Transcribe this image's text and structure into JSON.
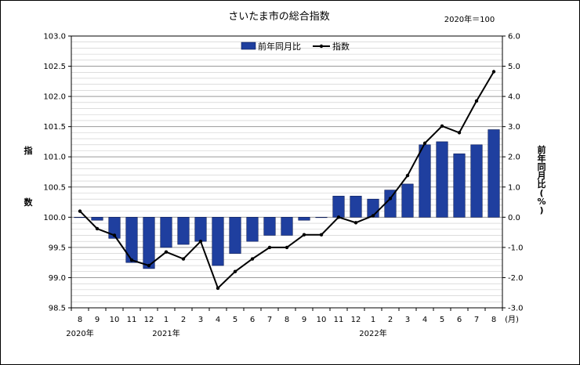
{
  "chart_data": {
    "type": "bar+line",
    "title": "さいたま市の総合指数",
    "base_note": "2020年＝100",
    "categories": [
      "8",
      "9",
      "10",
      "11",
      "12",
      "1",
      "2",
      "3",
      "4",
      "5",
      "6",
      "7",
      "8",
      "9",
      "10",
      "11",
      "12",
      "1",
      "2",
      "3",
      "4",
      "5",
      "6",
      "7",
      "8"
    ],
    "x_unit": "(月)",
    "year_labels": [
      {
        "text": "2020年",
        "index": 0
      },
      {
        "text": "2021年",
        "index": 5
      },
      {
        "text": "2022年",
        "index": 17
      }
    ],
    "left_axis": {
      "label_chars": [
        "指",
        "数"
      ],
      "min": 98.5,
      "max": 103.0,
      "major": 0.5,
      "ticks": [
        "98.5",
        "99.0",
        "99.5",
        "100.0",
        "100.5",
        "101.0",
        "101.5",
        "102.0",
        "102.5",
        "103.0"
      ]
    },
    "right_axis": {
      "label_chars": [
        "前",
        "年",
        "同",
        "月",
        "比",
        "(",
        "%",
        ")"
      ],
      "min": -3.0,
      "max": 6.0,
      "major": 1.0,
      "ticks": [
        "-3.0",
        "-2.0",
        "-1.0",
        "0.0",
        "1.0",
        "2.0",
        "3.0",
        "4.0",
        "5.0",
        "6.0"
      ]
    },
    "series": [
      {
        "name": "前年同月比",
        "type": "bar",
        "axis": "left",
        "color": "#1f3f9f",
        "values": [
          100.0,
          99.95,
          99.65,
          99.25,
          99.15,
          99.5,
          99.55,
          99.6,
          99.2,
          99.4,
          99.6,
          99.7,
          99.7,
          99.95,
          100.0,
          100.35,
          100.35,
          100.3,
          100.45,
          100.55,
          101.2,
          101.25,
          101.05,
          101.2,
          101.45
        ]
      },
      {
        "name": "指数",
        "type": "line",
        "axis": "right",
        "color": "#000000",
        "values": [
          0.2,
          -0.38,
          -0.6,
          -1.42,
          -1.6,
          -1.15,
          -1.38,
          -0.8,
          -2.35,
          -1.8,
          -1.38,
          -1.0,
          -1.0,
          -0.58,
          -0.58,
          0.0,
          -0.18,
          0.05,
          0.62,
          1.38,
          2.45,
          3.02,
          2.8,
          3.85,
          4.82
        ]
      }
    ]
  }
}
